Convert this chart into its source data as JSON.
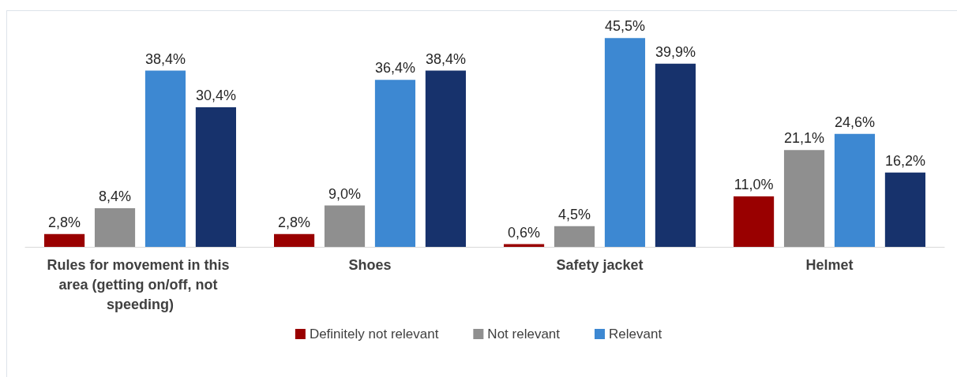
{
  "chart_data": {
    "type": "bar",
    "categories": [
      "Rules for movement in this area (getting on/off, not speeding)",
      "Shoes",
      "Safety jacket",
      "Helmet"
    ],
    "series": [
      {
        "name": "Definitely not relevant",
        "color": "#990000",
        "values": [
          2.8,
          2.8,
          0.6,
          11.0
        ],
        "value_labels": [
          "2,8%",
          "2,8%",
          "0,6%",
          "11,0%"
        ]
      },
      {
        "name": "Not relevant",
        "color": "#8f8f8f",
        "values": [
          8.4,
          9.0,
          4.5,
          21.1
        ],
        "value_labels": [
          "8,4%",
          "9,0%",
          "4,5%",
          "21,1%"
        ]
      },
      {
        "name": "Relevant",
        "color": "#3d88d2",
        "values": [
          38.4,
          36.4,
          45.5,
          24.6
        ],
        "value_labels": [
          "38,4%",
          "36,4%",
          "45,5%",
          "24,6%"
        ]
      },
      {
        "color": "#17326c",
        "values": [
          30.4,
          38.4,
          39.9,
          16.2
        ],
        "value_labels": [
          "30,4%",
          "38,4%",
          "39,9%",
          "16,2%"
        ]
      }
    ],
    "legend": "bottom"
  }
}
